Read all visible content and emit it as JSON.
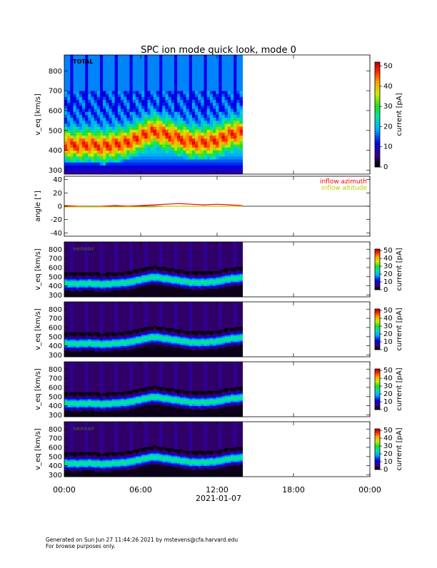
{
  "title": "SPC ion mode quick look, mode 0",
  "footer": {
    "line1": "Generated on Sun Jun 27 11:44:26 2021 by mstevens@cfa.harvard.edu",
    "line2": "For browse purposes only."
  },
  "chart_data": [
    {
      "type": "heatmap",
      "panel_label": "TOTAL",
      "ylabel": "v_eq [km/s]",
      "ylim": [
        280,
        880
      ],
      "yticks": [
        300,
        400,
        500,
        600,
        700,
        800
      ],
      "xlim_hours": [
        0,
        24
      ],
      "data_end_hour": 14,
      "core_speed_kms": [
        [
          0,
          430
        ],
        [
          1,
          425
        ],
        [
          2,
          430
        ],
        [
          3,
          420
        ],
        [
          4,
          430
        ],
        [
          5,
          440
        ],
        [
          6,
          470
        ],
        [
          7,
          500
        ],
        [
          8,
          480
        ],
        [
          9,
          460
        ],
        [
          10,
          440
        ],
        [
          11,
          440
        ],
        [
          12,
          450
        ],
        [
          13,
          480
        ],
        [
          14,
          490
        ]
      ],
      "colorbar": {
        "label": "current [pA]",
        "range": [
          0,
          52
        ],
        "ticks": [
          0,
          10,
          20,
          30,
          40,
          50
        ]
      }
    },
    {
      "type": "line",
      "ylabel": "angle [°]",
      "ylim": [
        -45,
        45
      ],
      "yticks": [
        -40,
        -20,
        0,
        20,
        40
      ],
      "xlim_hours": [
        0,
        24
      ],
      "series": [
        {
          "name": "inflow azimuth",
          "color": "#ff0000",
          "x": [
            0,
            1,
            2,
            3,
            4,
            5,
            6,
            7,
            8,
            9,
            10,
            11,
            12,
            13,
            14
          ],
          "values": [
            1,
            0,
            -1,
            0,
            1,
            0,
            1,
            2,
            3,
            4,
            3,
            2,
            3,
            2,
            1
          ]
        },
        {
          "name": "inflow altitude",
          "color": "#b4d200",
          "x": [
            0,
            1,
            2,
            3,
            4,
            5,
            6,
            7,
            8,
            9,
            10,
            11,
            12,
            13,
            14
          ],
          "values": [
            -1,
            -1,
            -1,
            -1,
            -1,
            -1,
            -1,
            -1,
            0,
            0,
            0,
            0,
            0,
            0,
            0
          ]
        }
      ]
    },
    {
      "type": "heatmap",
      "panel_label": "sensor",
      "ylabel": "v_eq [km/s]",
      "ylim": [
        280,
        880
      ],
      "yticks": [
        300,
        400,
        500,
        600,
        700,
        800
      ],
      "xlim_hours": [
        0,
        24
      ],
      "data_end_hour": 14,
      "colorbar": {
        "label": "current [pA]",
        "range": [
          0,
          52
        ],
        "ticks": [
          0,
          10,
          20,
          30,
          40,
          50
        ]
      }
    },
    {
      "type": "heatmap",
      "panel_label": "",
      "ylabel": "v_eq [km/s]",
      "ylim": [
        280,
        880
      ],
      "yticks": [
        300,
        400,
        500,
        600,
        700,
        800
      ],
      "xlim_hours": [
        0,
        24
      ],
      "data_end_hour": 14,
      "colorbar": {
        "label": "current [pA]",
        "range": [
          0,
          52
        ],
        "ticks": [
          0,
          10,
          20,
          30,
          40,
          50
        ]
      }
    },
    {
      "type": "heatmap",
      "panel_label": "",
      "ylabel": "v_eq [km/s]",
      "ylim": [
        280,
        880
      ],
      "yticks": [
        300,
        400,
        500,
        600,
        700,
        800
      ],
      "xlim_hours": [
        0,
        24
      ],
      "data_end_hour": 14,
      "colorbar": {
        "label": "current [pA]",
        "range": [
          0,
          52
        ],
        "ticks": [
          0,
          10,
          20,
          30,
          40,
          50
        ]
      }
    },
    {
      "type": "heatmap",
      "panel_label": "sensor",
      "ylabel": "v_eq [km/s]",
      "ylim": [
        280,
        880
      ],
      "yticks": [
        300,
        400,
        500,
        600,
        700,
        800
      ],
      "xlim_hours": [
        0,
        24
      ],
      "data_end_hour": 14,
      "colorbar": {
        "label": "current [pA]",
        "range": [
          0,
          52
        ],
        "ticks": [
          0,
          10,
          20,
          30,
          40,
          50
        ]
      }
    }
  ],
  "x_axis": {
    "tick_labels": [
      "00:00",
      "06:00",
      "12:00",
      "18:00",
      "00:00"
    ],
    "tick_hours": [
      0,
      6,
      12,
      18,
      24
    ],
    "date_label": "2021-01-07"
  },
  "colors": {
    "background": "#ffffff",
    "heatmap_empty": "#000000",
    "line_azimuth": "#ff0000",
    "line_altitude": "#b4d200"
  }
}
